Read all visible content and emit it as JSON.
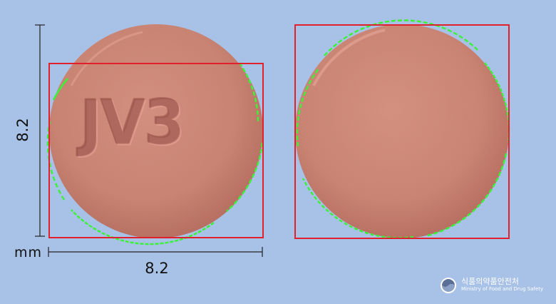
{
  "dimensions": {
    "vertical_label": "8.2",
    "horizontal_label": "8.2",
    "unit_label": "mm"
  },
  "pill_front": {
    "imprint": "JV3",
    "shape": "round",
    "color": "#cf8876"
  },
  "pill_back": {
    "imprint": "",
    "shape": "round",
    "color": "#cf8876"
  },
  "logo": {
    "name_ko": "식품의약품안전처",
    "name_en": "Ministry of Food and Drug Safety"
  },
  "colors": {
    "background": "#a8c1e6",
    "bounding_box": "#e0202a",
    "edge_trace": "#3df03a",
    "pill": "#cf8876"
  }
}
